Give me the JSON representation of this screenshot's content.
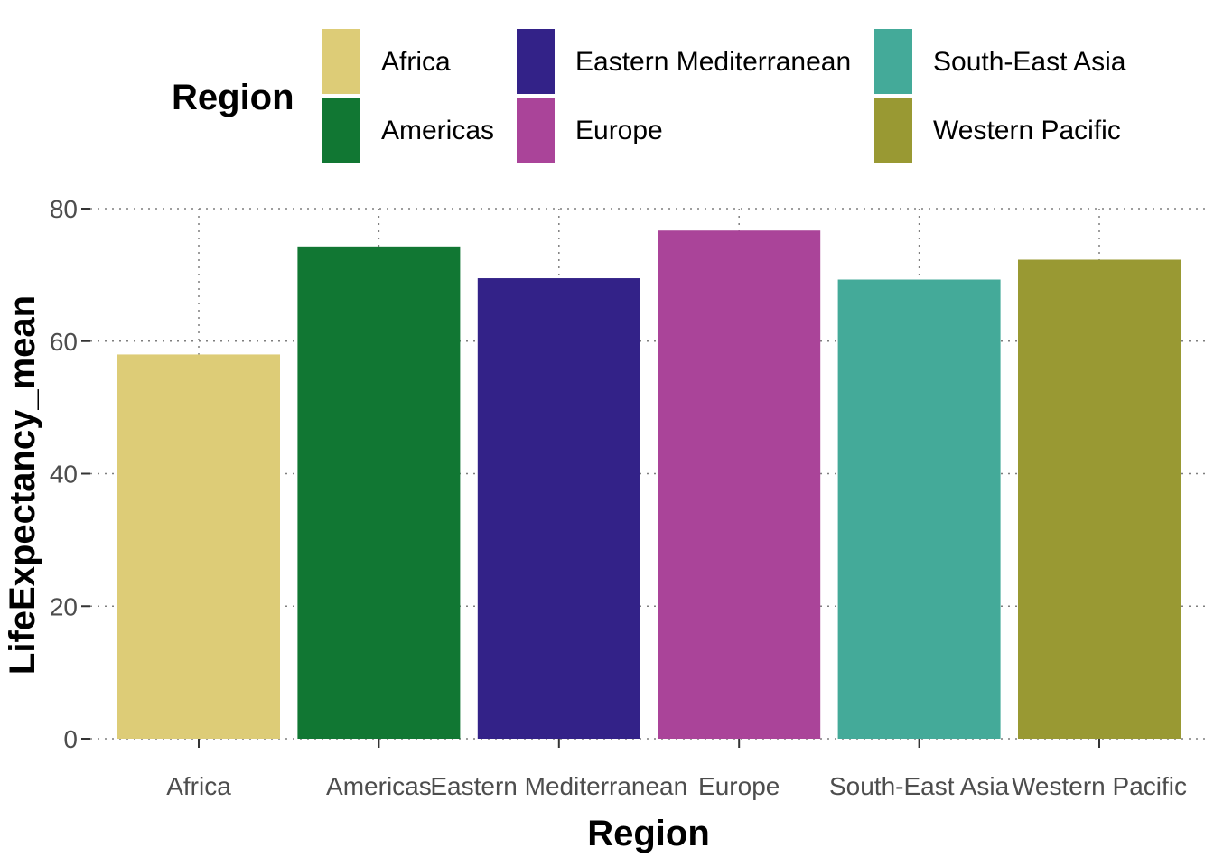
{
  "chart_data": {
    "type": "bar",
    "title": "",
    "xlabel": "Region",
    "ylabel": "LifeExpectancy_mean",
    "categories": [
      "Africa",
      "Americas",
      "Eastern Mediterranean",
      "Europe",
      "South-East Asia",
      "Western Pacific"
    ],
    "values": [
      58.0,
      74.3,
      69.5,
      76.7,
      69.3,
      72.3
    ],
    "colors": [
      "#DDCC77",
      "#117733",
      "#332288",
      "#AA4499",
      "#44AA99",
      "#999933"
    ],
    "ylim": [
      0,
      80
    ],
    "yticks": [
      0,
      20,
      40,
      60,
      80
    ],
    "grid": true,
    "legend": {
      "title": "Region",
      "placement": "top",
      "entries": [
        "Africa",
        "Americas",
        "Eastern Mediterranean",
        "Europe",
        "South-East Asia",
        "Western Pacific"
      ]
    }
  }
}
